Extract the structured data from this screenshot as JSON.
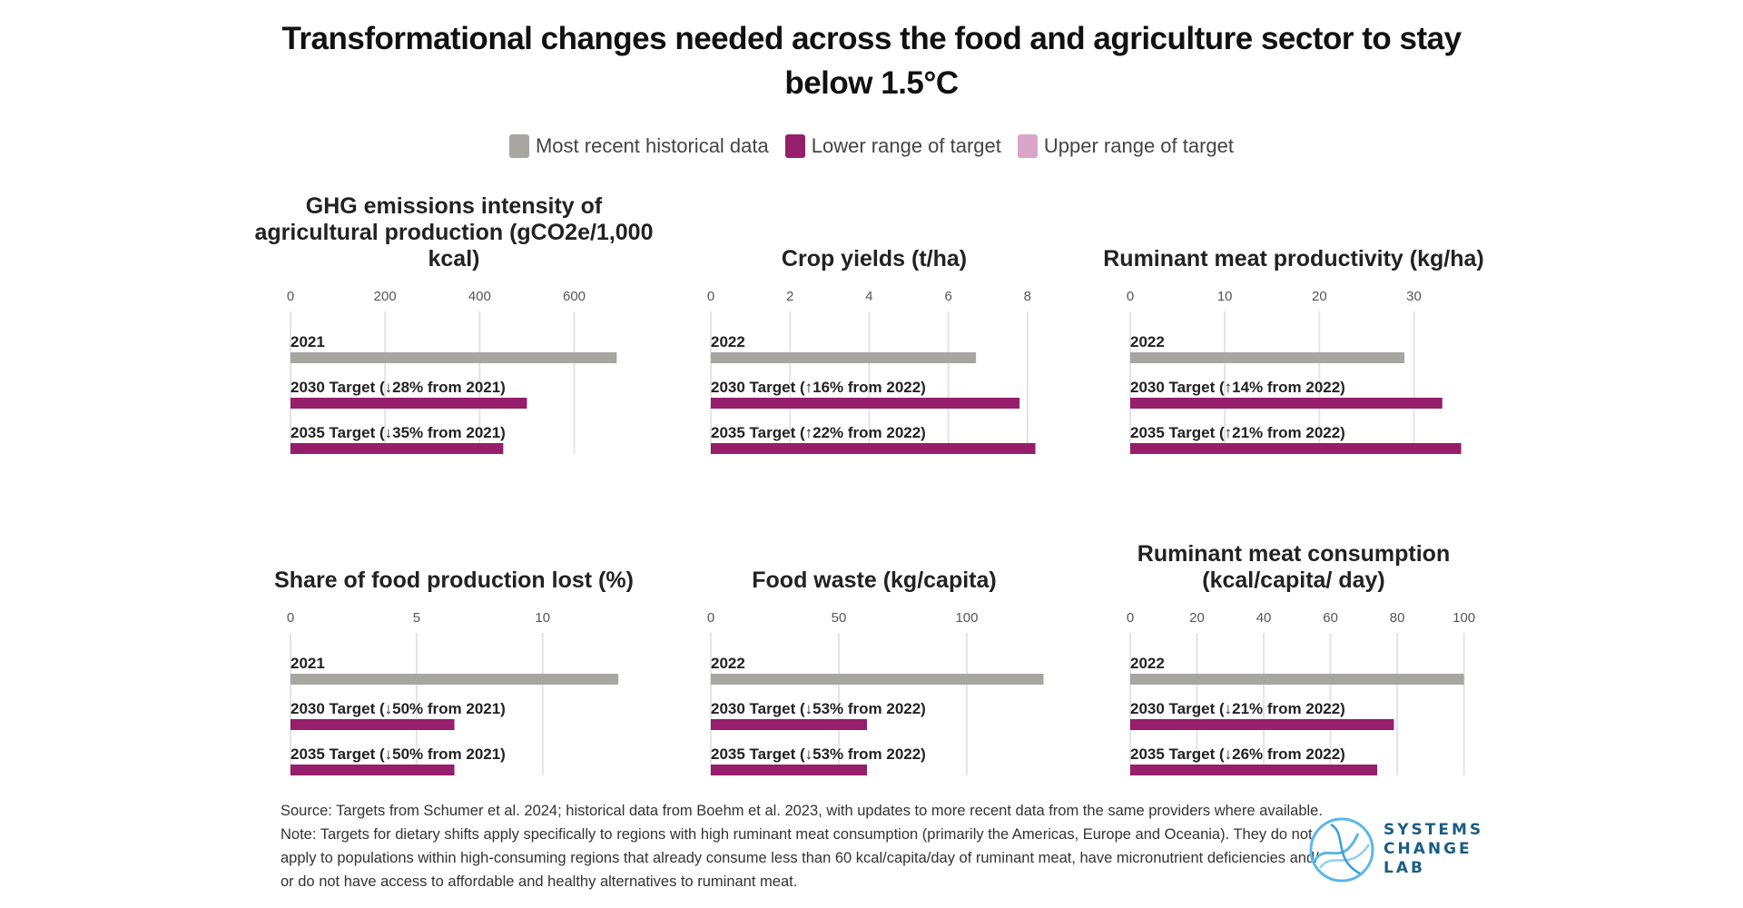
{
  "title": "Transformational changes needed across the food and agriculture sector to stay below 1.5°C",
  "legend": [
    {
      "label": "Most recent historical data",
      "color": "#a7a6a1"
    },
    {
      "label": "Lower range of target",
      "color": "#961e6b"
    },
    {
      "label": "Upper range of target",
      "color": "#d9a6c9"
    }
  ],
  "colors": {
    "historical": "#a7a6a1",
    "target": "#961e6b",
    "grid": "#e4e4e4"
  },
  "chart_data": [
    {
      "type": "bar",
      "title": "GHG emissions intensity of agricultural production (gCO2e/1,000 kcal)",
      "xlim": [
        0,
        720
      ],
      "ticks": [
        0,
        200,
        400,
        600
      ],
      "categories": [
        "2021",
        "2030 Target (↓28% from 2021)",
        "2035 Target (↓35% from 2021)"
      ],
      "values": [
        690,
        500,
        450
      ],
      "kinds": [
        "historical",
        "target",
        "target"
      ]
    },
    {
      "type": "bar",
      "title": "Crop yields (t/ha)",
      "xlim": [
        0,
        8.6
      ],
      "ticks": [
        0,
        2,
        4,
        6,
        8
      ],
      "categories": [
        "2022",
        "2030 Target (↑16% from 2022)",
        "2035 Target (↑22% from 2022)"
      ],
      "values": [
        6.7,
        7.8,
        8.2
      ],
      "kinds": [
        "historical",
        "target",
        "target"
      ]
    },
    {
      "type": "bar",
      "title": "Ruminant meat productivity (kg/ha)",
      "xlim": [
        0,
        36
      ],
      "ticks": [
        0,
        10,
        20,
        30
      ],
      "categories": [
        "2022",
        "2030 Target (↑14% from 2022)",
        "2035 Target (↑21% from 2022)"
      ],
      "values": [
        29,
        33,
        35
      ],
      "kinds": [
        "historical",
        "target",
        "target"
      ]
    },
    {
      "type": "bar",
      "title": "Share of food production lost (%)",
      "xlim": [
        0,
        13.5
      ],
      "ticks": [
        0,
        5,
        10
      ],
      "categories": [
        "2021",
        "2030 Target (↓50% from 2021)",
        "2035 Target (↓50% from 2021)"
      ],
      "values": [
        13,
        6.5,
        6.5
      ],
      "kinds": [
        "historical",
        "target",
        "target"
      ]
    },
    {
      "type": "bar",
      "title": "Food waste (kg/capita)",
      "xlim": [
        0,
        133
      ],
      "ticks": [
        0,
        50,
        100
      ],
      "categories": [
        "2022",
        "2030 Target (↓53% from 2022)",
        "2035 Target (↓53% from 2022)"
      ],
      "values": [
        130,
        61,
        61
      ],
      "kinds": [
        "historical",
        "target",
        "target"
      ]
    },
    {
      "type": "bar",
      "title": "Ruminant meat consumption (kcal/capita/ day)",
      "xlim": [
        0,
        102
      ],
      "ticks": [
        0,
        20,
        40,
        60,
        80,
        100
      ],
      "categories": [
        "2022",
        "2030 Target (↓21% from 2022)",
        "2035 Target (↓26% from 2022)"
      ],
      "values": [
        100,
        79,
        74
      ],
      "kinds": [
        "historical",
        "target",
        "target"
      ]
    }
  ],
  "source_lines": [
    "Source: Targets from Schumer et al. 2024; historical data from Boehm et al. 2023, with updates to more recent data from the same providers where available.",
    "Note: Targets for dietary shifts apply specifically to regions with high ruminant meat consumption (primarily the Americas, Europe and Oceania). They do not",
    "apply to populations within high-consuming regions that already consume less than 60 kcal/capita/day of ruminant meat, have micronutrient deficiencies and/",
    "or do not have access to affordable and healthy alternatives to ruminant meat."
  ],
  "logo": {
    "lines": [
      "SYSTEMS",
      "CHANGE",
      "LAB"
    ],
    "color": "#1b5d83"
  }
}
